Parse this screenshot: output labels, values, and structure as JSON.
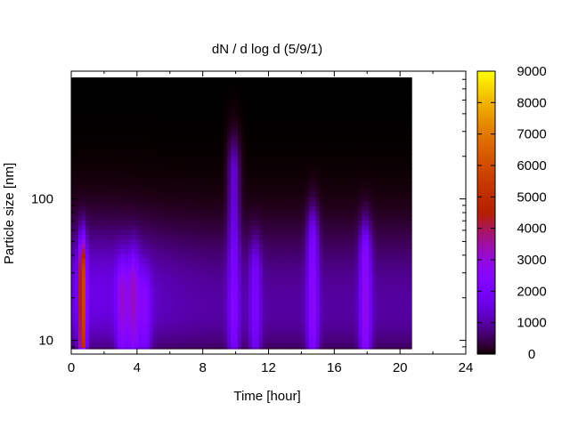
{
  "chart_data": {
    "type": "heatmap",
    "title": "dN / d log d (5/9/1)",
    "xlabel": "Time [hour]",
    "ylabel": "Particle size [nm]",
    "x_ticks": [
      0,
      4,
      8,
      12,
      16,
      20,
      24
    ],
    "x_tick_labels": [
      "0",
      "4",
      "8",
      "12",
      "16",
      "20",
      "24"
    ],
    "xlim": [
      0,
      24
    ],
    "y_scale": "log",
    "y_ticks": [
      10,
      100
    ],
    "y_tick_labels": [
      "10",
      "100"
    ],
    "ylim": [
      8,
      800
    ],
    "data_x_range": [
      0,
      20.7
    ],
    "colorbar": {
      "min": 0,
      "max": 9000,
      "ticks": [
        0,
        1000,
        2000,
        3000,
        4000,
        5000,
        6000,
        7000,
        8000,
        9000
      ],
      "tick_labels": [
        "0",
        "1000",
        "2000",
        "3000",
        "4000",
        "5000",
        "6000",
        "7000",
        "8000",
        "9000"
      ],
      "colormap": "gnuplot pm3d (black-purple-red-yellow)"
    },
    "features": {
      "background_concentration_small": 400,
      "broad_mode_center_nm": 25,
      "broad_mode_level": 1500,
      "upper_cutoff_nm": 550,
      "plumes": [
        {
          "time_hour": 0.7,
          "peak": 4500,
          "top_nm": 30
        },
        {
          "time_hour": 3.1,
          "peak": 1600,
          "top_nm": 22
        },
        {
          "time_hour": 3.8,
          "peak": 1800,
          "top_nm": 25
        },
        {
          "time_hour": 4.5,
          "peak": 1300,
          "top_nm": 18
        },
        {
          "time_hour": 9.9,
          "peak": 1400,
          "top_nm": 150
        },
        {
          "time_hour": 11.2,
          "peak": 1200,
          "top_nm": 30
        },
        {
          "time_hour": 14.7,
          "peak": 1700,
          "top_nm": 50
        },
        {
          "time_hour": 17.9,
          "peak": 1900,
          "top_nm": 40
        }
      ]
    }
  }
}
